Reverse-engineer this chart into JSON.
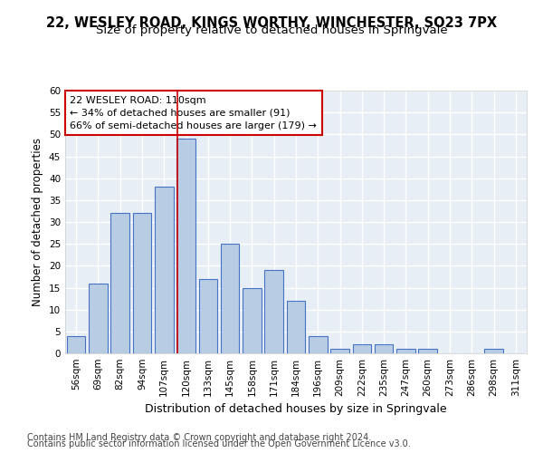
{
  "title": "22, WESLEY ROAD, KINGS WORTHY, WINCHESTER, SO23 7PX",
  "subtitle": "Size of property relative to detached houses in Springvale",
  "xlabel": "Distribution of detached houses by size in Springvale",
  "ylabel": "Number of detached properties",
  "categories": [
    "56sqm",
    "69sqm",
    "82sqm",
    "94sqm",
    "107sqm",
    "120sqm",
    "133sqm",
    "145sqm",
    "158sqm",
    "171sqm",
    "184sqm",
    "196sqm",
    "209sqm",
    "222sqm",
    "235sqm",
    "247sqm",
    "260sqm",
    "273sqm",
    "286sqm",
    "298sqm",
    "311sqm"
  ],
  "values": [
    4,
    16,
    32,
    32,
    38,
    49,
    17,
    25,
    15,
    19,
    12,
    4,
    1,
    2,
    2,
    1,
    1,
    0,
    0,
    1,
    0
  ],
  "bar_color": "#b8cce4",
  "bar_edge_color": "#4472c4",
  "background_color": "#e8eef5",
  "grid_color": "#ffffff",
  "annotation_text": "22 WESLEY ROAD: 110sqm\n← 34% of detached houses are smaller (91)\n66% of semi-detached houses are larger (179) →",
  "annotation_box_color": "#ffffff",
  "annotation_box_edge_color": "#cc0000",
  "vline_x_index": 4.62,
  "vline_color": "#cc0000",
  "ylim": [
    0,
    60
  ],
  "yticks": [
    0,
    5,
    10,
    15,
    20,
    25,
    30,
    35,
    40,
    45,
    50,
    55,
    60
  ],
  "footer_line1": "Contains HM Land Registry data © Crown copyright and database right 2024.",
  "footer_line2": "Contains public sector information licensed under the Open Government Licence v3.0.",
  "title_fontsize": 10.5,
  "subtitle_fontsize": 9.5,
  "xlabel_fontsize": 9,
  "ylabel_fontsize": 8.5,
  "tick_fontsize": 7.5,
  "annotation_fontsize": 8,
  "footer_fontsize": 7
}
